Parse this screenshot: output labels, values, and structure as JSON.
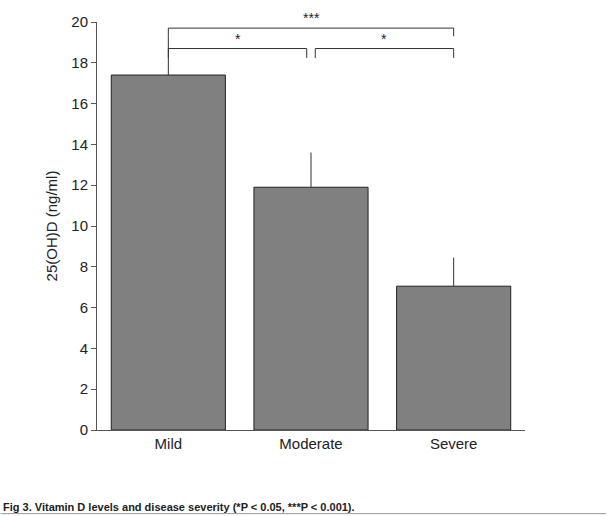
{
  "chart_data": {
    "type": "bar",
    "caption": "Fig 3. Vitamin D levels and disease severity (*P < 0.05, ***P < 0.001).",
    "y_label": "25(OH)D (ng/ml)",
    "categories": [
      "Mild",
      "Moderate",
      "Severe"
    ],
    "values": [
      17.4,
      11.9,
      7.05
    ],
    "errors": [
      1.9,
      1.7,
      1.4
    ],
    "color": "#808080",
    "ylim": [
      0,
      20
    ],
    "yticks": [
      0,
      2,
      4,
      6,
      8,
      10,
      12,
      14,
      16,
      18,
      20
    ],
    "grid": false,
    "annotations": [
      {
        "from": "Mild",
        "to": "Severe",
        "text": "***"
      },
      {
        "from": "Mild",
        "to": "Moderate",
        "text": "*"
      },
      {
        "from": "Moderate",
        "to": "Severe",
        "text": "*"
      }
    ]
  }
}
